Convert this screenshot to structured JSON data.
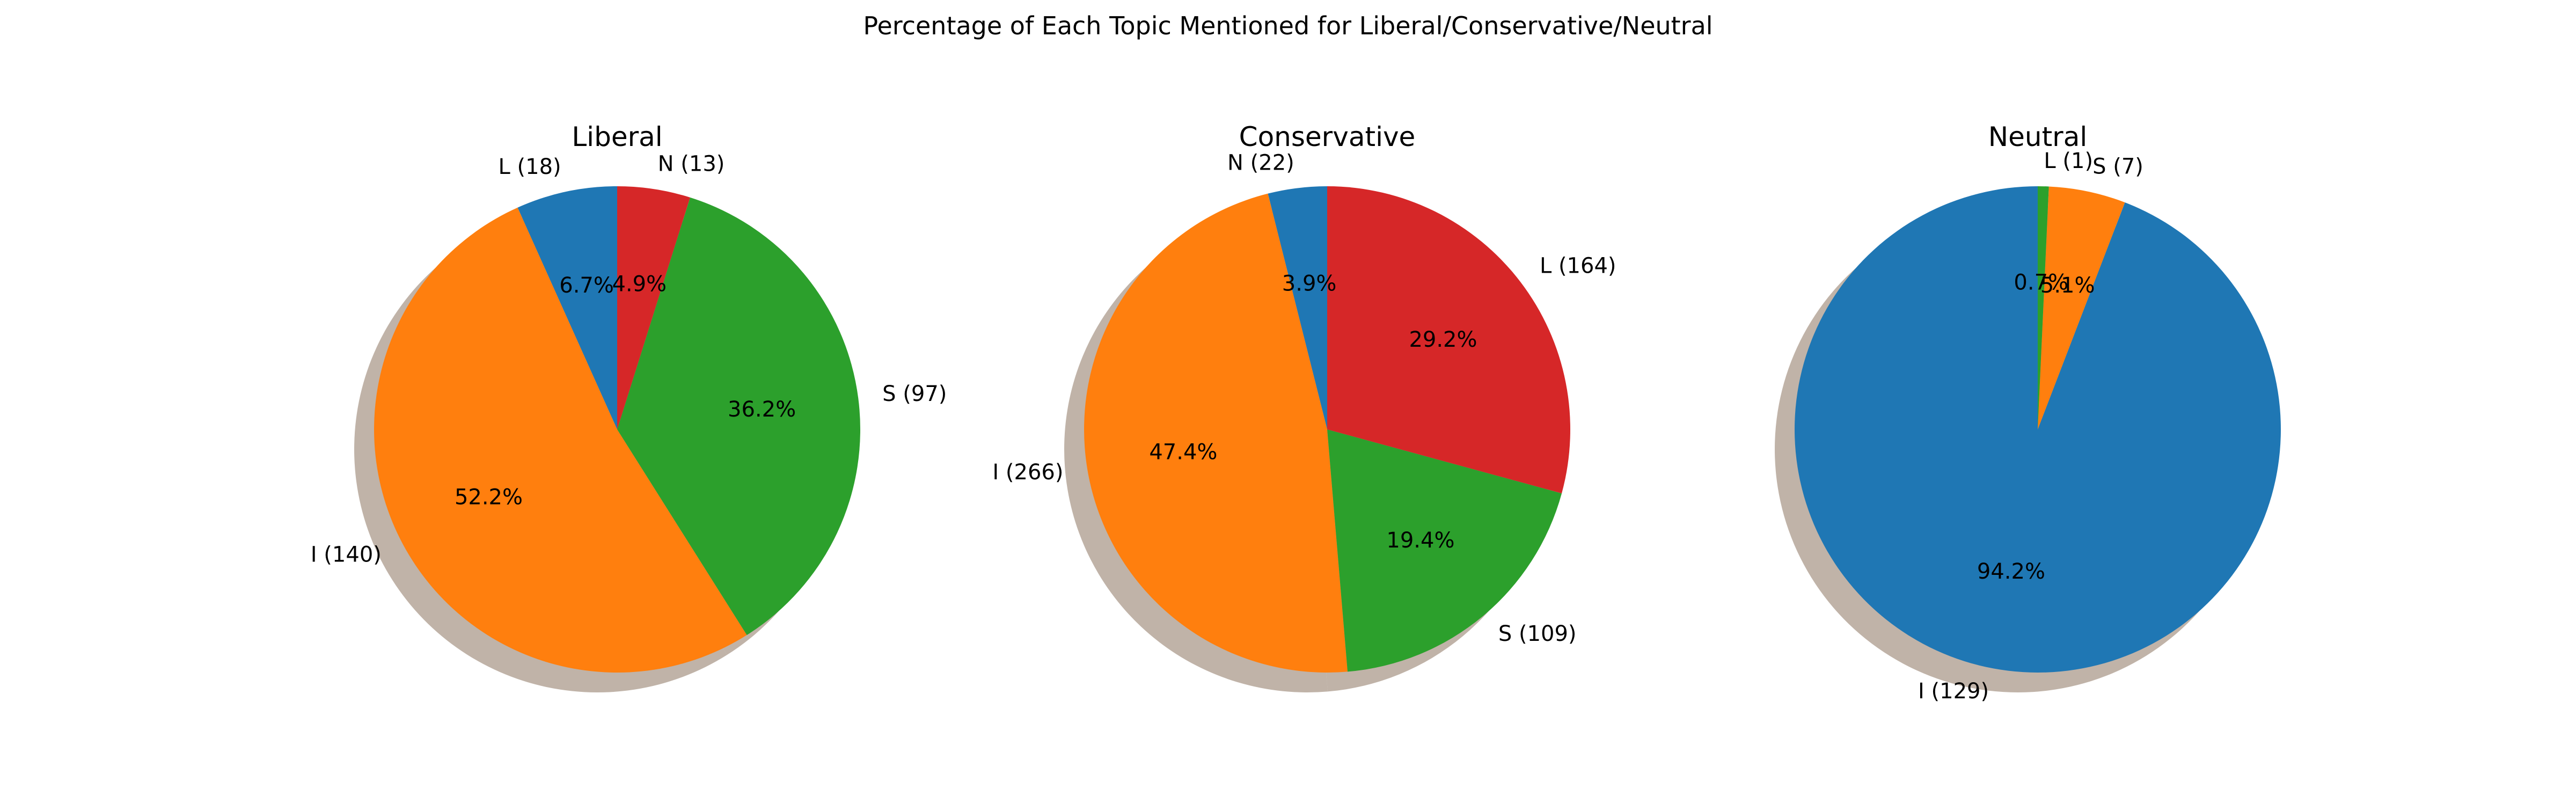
{
  "figure": {
    "title": "Percentage of Each Topic Mentioned for Liberal/Conservative/Neutral"
  },
  "colors": {
    "blue": "#1f77b4",
    "orange": "#ff7f0e",
    "green": "#2ca02c",
    "red": "#d62728",
    "shadow": "#9a8472"
  },
  "chart_data": [
    {
      "type": "pie",
      "title": "Liberal",
      "shadow": true,
      "start_angle_deg": 90,
      "direction": "counterclockwise",
      "slices": [
        {
          "label": "L (18)",
          "value": 18,
          "pct": "6.7%",
          "color": "#1f77b4"
        },
        {
          "label": "I (140)",
          "value": 140,
          "pct": "52.2%",
          "color": "#ff7f0e"
        },
        {
          "label": "S (97)",
          "value": 97,
          "pct": "36.2%",
          "color": "#2ca02c"
        },
        {
          "label": "N (13)",
          "value": 13,
          "pct": "4.9%",
          "color": "#d62728"
        }
      ]
    },
    {
      "type": "pie",
      "title": "Conservative",
      "shadow": true,
      "start_angle_deg": 90,
      "direction": "counterclockwise",
      "slices": [
        {
          "label": "N (22)",
          "value": 22,
          "pct": "3.9%",
          "color": "#1f77b4"
        },
        {
          "label": "I (266)",
          "value": 266,
          "pct": "47.4%",
          "color": "#ff7f0e"
        },
        {
          "label": "S (109)",
          "value": 109,
          "pct": "19.4%",
          "color": "#2ca02c"
        },
        {
          "label": "L (164)",
          "value": 164,
          "pct": "29.2%",
          "color": "#d62728"
        }
      ]
    },
    {
      "type": "pie",
      "title": "Neutral",
      "shadow": true,
      "start_angle_deg": 90,
      "direction": "counterclockwise",
      "slices": [
        {
          "label": "I (129)",
          "value": 129,
          "pct": "94.2%",
          "color": "#1f77b4"
        },
        {
          "label": "S (7)",
          "value": 7,
          "pct": "5.1%",
          "color": "#ff7f0e"
        },
        {
          "label": "L (1)",
          "value": 1,
          "pct": "0.7%",
          "color": "#2ca02c"
        }
      ]
    }
  ]
}
